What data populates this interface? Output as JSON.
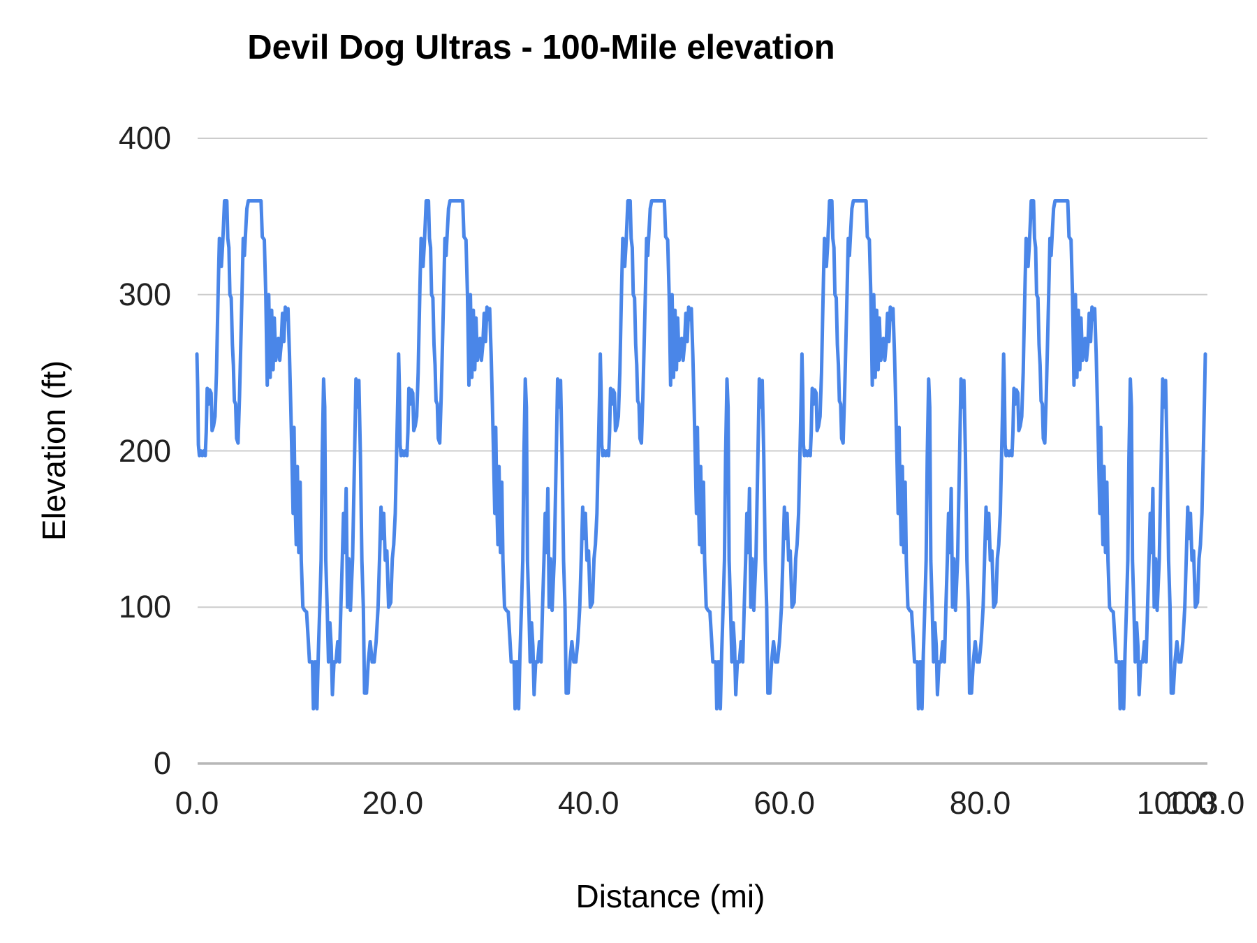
{
  "title": "Devil Dog Ultras - 100-Mile elevation",
  "chart_data": {
    "type": "line",
    "title": "Devil Dog Ultras - 100-Mile elevation",
    "xlabel": "Distance (mi)",
    "ylabel": "Elevation (ft)",
    "xlim": [
      0,
      103
    ],
    "ylim": [
      0,
      400
    ],
    "grid": "horizontal",
    "legend": "none",
    "line_color": "#4a86e8",
    "gridline_color": "#cccccc",
    "baseline_color": "#b7b7b7",
    "y_tick_values": [
      400,
      300,
      200,
      100,
      0
    ],
    "y_tick_labels": [
      "400",
      "300",
      "200",
      "100",
      "0"
    ],
    "x_tick_values": [
      0,
      20,
      40,
      60,
      80,
      100,
      103
    ],
    "x_tick_labels": [
      "0.0",
      "20.0",
      "40.0",
      "60.0",
      "80.0",
      "100.0",
      "103.0"
    ],
    "laps": 5,
    "lap_length_mi": 20.6,
    "total_miles": 103,
    "lap_profile": [
      [
        0.0,
        262
      ],
      [
        0.08,
        240
      ],
      [
        0.15,
        204
      ],
      [
        0.25,
        197
      ],
      [
        0.4,
        200
      ],
      [
        0.55,
        197
      ],
      [
        0.7,
        200
      ],
      [
        0.85,
        197
      ],
      [
        0.95,
        212
      ],
      [
        1.05,
        240
      ],
      [
        1.18,
        230
      ],
      [
        1.3,
        239
      ],
      [
        1.45,
        237
      ],
      [
        1.55,
        213
      ],
      [
        1.7,
        216
      ],
      [
        1.85,
        222
      ],
      [
        2.0,
        250
      ],
      [
        2.1,
        281
      ],
      [
        2.2,
        310
      ],
      [
        2.3,
        336
      ],
      [
        2.42,
        330
      ],
      [
        2.5,
        318
      ],
      [
        2.62,
        331
      ],
      [
        2.72,
        345
      ],
      [
        2.82,
        360
      ],
      [
        3.05,
        360
      ],
      [
        3.15,
        336
      ],
      [
        3.27,
        330
      ],
      [
        3.37,
        300
      ],
      [
        3.5,
        298
      ],
      [
        3.62,
        268
      ],
      [
        3.72,
        255
      ],
      [
        3.82,
        232
      ],
      [
        3.95,
        230
      ],
      [
        4.05,
        208
      ],
      [
        4.2,
        205
      ],
      [
        4.35,
        235
      ],
      [
        4.48,
        268
      ],
      [
        4.6,
        300
      ],
      [
        4.73,
        336
      ],
      [
        4.85,
        325
      ],
      [
        4.97,
        340
      ],
      [
        5.1,
        355
      ],
      [
        5.25,
        360
      ],
      [
        6.55,
        360
      ],
      [
        6.68,
        337
      ],
      [
        6.88,
        335
      ],
      [
        7.03,
        300
      ],
      [
        7.18,
        242
      ],
      [
        7.33,
        300
      ],
      [
        7.48,
        247
      ],
      [
        7.63,
        290
      ],
      [
        7.78,
        252
      ],
      [
        7.9,
        285
      ],
      [
        8.05,
        258
      ],
      [
        8.18,
        265
      ],
      [
        8.32,
        272
      ],
      [
        8.46,
        258
      ],
      [
        8.6,
        268
      ],
      [
        8.74,
        288
      ],
      [
        8.88,
        270
      ],
      [
        9.02,
        292
      ],
      [
        9.16,
        284
      ],
      [
        9.3,
        291
      ],
      [
        9.45,
        262
      ],
      [
        9.58,
        230
      ],
      [
        9.7,
        196
      ],
      [
        9.82,
        160
      ],
      [
        9.92,
        215
      ],
      [
        10.02,
        170
      ],
      [
        10.14,
        140
      ],
      [
        10.26,
        190
      ],
      [
        10.4,
        135
      ],
      [
        10.54,
        180
      ],
      [
        10.66,
        130
      ],
      [
        10.82,
        100
      ],
      [
        11.0,
        98
      ],
      [
        11.2,
        97
      ],
      [
        11.36,
        80
      ],
      [
        11.5,
        65
      ],
      [
        11.8,
        65
      ],
      [
        11.9,
        35
      ],
      [
        12.02,
        65
      ],
      [
        12.16,
        65
      ],
      [
        12.26,
        35
      ],
      [
        12.4,
        70
      ],
      [
        12.55,
        100
      ],
      [
        12.68,
        130
      ],
      [
        12.8,
        196
      ],
      [
        12.94,
        246
      ],
      [
        13.05,
        228
      ],
      [
        13.16,
        130
      ],
      [
        13.3,
        100
      ],
      [
        13.44,
        65
      ],
      [
        13.58,
        90
      ],
      [
        13.72,
        75
      ],
      [
        13.84,
        44
      ],
      [
        14.0,
        65
      ],
      [
        14.2,
        65
      ],
      [
        14.38,
        78
      ],
      [
        14.55,
        65
      ],
      [
        14.7,
        100
      ],
      [
        14.85,
        131
      ],
      [
        14.97,
        160
      ],
      [
        15.1,
        135
      ],
      [
        15.24,
        176
      ],
      [
        15.38,
        100
      ],
      [
        15.52,
        131
      ],
      [
        15.68,
        98
      ],
      [
        15.9,
        131
      ],
      [
        16.1,
        196
      ],
      [
        16.24,
        246
      ],
      [
        16.4,
        228
      ],
      [
        16.54,
        245
      ],
      [
        16.7,
        197
      ],
      [
        16.85,
        130
      ],
      [
        17.0,
        100
      ],
      [
        17.12,
        45
      ],
      [
        17.32,
        45
      ],
      [
        17.5,
        65
      ],
      [
        17.7,
        78
      ],
      [
        17.9,
        65
      ],
      [
        18.1,
        65
      ],
      [
        18.3,
        78
      ],
      [
        18.5,
        100
      ],
      [
        18.65,
        131
      ],
      [
        18.8,
        164
      ],
      [
        18.94,
        144
      ],
      [
        19.08,
        160
      ],
      [
        19.24,
        130
      ],
      [
        19.4,
        136
      ],
      [
        19.58,
        100
      ],
      [
        19.8,
        103
      ],
      [
        19.96,
        131
      ],
      [
        20.1,
        140
      ],
      [
        20.26,
        160
      ],
      [
        20.4,
        200
      ],
      [
        20.52,
        236
      ]
    ],
    "final_point": [
      103.0,
      262
    ]
  }
}
